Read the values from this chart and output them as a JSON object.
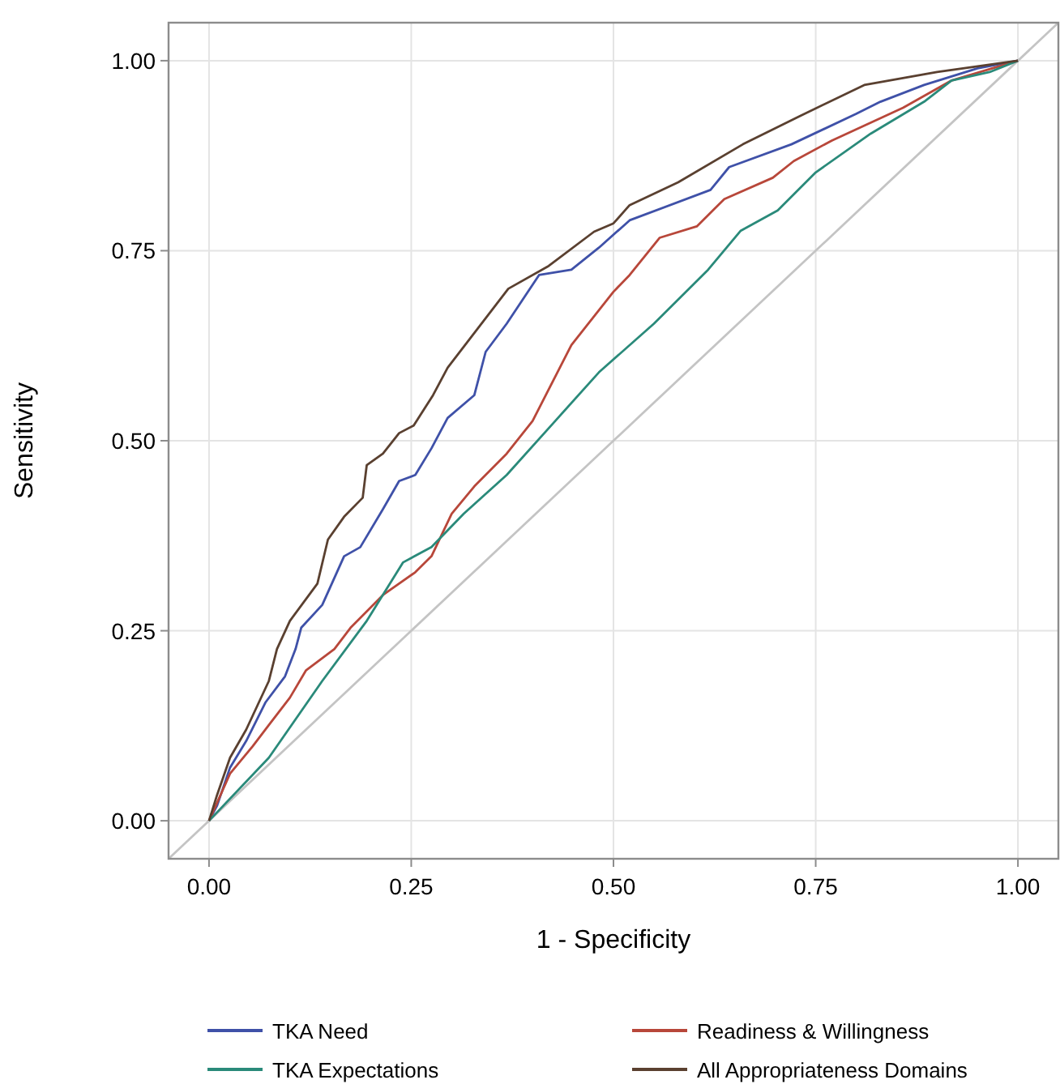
{
  "chart_data": {
    "type": "line",
    "xlabel": "1 - Specificity",
    "ylabel": "Sensitivity",
    "xlim": [
      -0.05,
      1.05
    ],
    "ylim": [
      -0.05,
      1.05
    ],
    "xticks": [
      {
        "value": 0,
        "label": "0.00"
      },
      {
        "value": 0.25,
        "label": "0.25"
      },
      {
        "value": 0.5,
        "label": "0.50"
      },
      {
        "value": 0.75,
        "label": "0.75"
      },
      {
        "value": 1,
        "label": "1.00"
      }
    ],
    "yticks": [
      {
        "value": 0,
        "label": "0.00"
      },
      {
        "value": 0.25,
        "label": "0.25"
      },
      {
        "value": 0.5,
        "label": "0.50"
      },
      {
        "value": 0.75,
        "label": "0.75"
      },
      {
        "value": 1,
        "label": "1.00"
      }
    ],
    "grid": true,
    "legend": "bottom",
    "marker": "none",
    "line_style": "solid",
    "series": [
      {
        "type": "line",
        "color": "#c4c4c4",
        "x": [
          -0.05,
          1.05
        ],
        "values": [
          -0.05,
          1.05
        ]
      },
      {
        "name": "TKA Need",
        "color": "#3f51a8",
        "x": [
          0,
          0.01,
          0.026,
          0.046,
          0.07,
          0.094,
          0.107,
          0.114,
          0.14,
          0.167,
          0.187,
          0.215,
          0.235,
          0.255,
          0.275,
          0.295,
          0.328,
          0.342,
          0.368,
          0.408,
          0.448,
          0.482,
          0.52,
          0.62,
          0.643,
          0.72,
          0.8,
          0.83,
          0.884,
          0.95,
          1
        ],
        "values": [
          0,
          0.02,
          0.07,
          0.105,
          0.156,
          0.19,
          0.226,
          0.254,
          0.284,
          0.348,
          0.36,
          0.41,
          0.447,
          0.455,
          0.49,
          0.53,
          0.56,
          0.617,
          0.654,
          0.718,
          0.725,
          0.754,
          0.79,
          0.83,
          0.86,
          0.89,
          0.93,
          0.946,
          0.968,
          0.99,
          1
        ]
      },
      {
        "name": "Readiness & Willingness",
        "color": "#b8473a",
        "x": [
          0,
          0.026,
          0.054,
          0.074,
          0.1,
          0.12,
          0.155,
          0.175,
          0.215,
          0.255,
          0.275,
          0.3,
          0.328,
          0.368,
          0.4,
          0.448,
          0.5,
          0.52,
          0.557,
          0.603,
          0.637,
          0.697,
          0.723,
          0.77,
          0.858,
          0.918,
          1
        ],
        "values": [
          0,
          0.062,
          0.098,
          0.126,
          0.162,
          0.198,
          0.226,
          0.254,
          0.297,
          0.327,
          0.348,
          0.404,
          0.44,
          0.483,
          0.526,
          0.626,
          0.696,
          0.718,
          0.767,
          0.782,
          0.818,
          0.846,
          0.868,
          0.895,
          0.938,
          0.974,
          1
        ]
      },
      {
        "name": "TKA Expectations",
        "color": "#2a8a7a",
        "x": [
          0,
          0.074,
          0.14,
          0.195,
          0.24,
          0.275,
          0.315,
          0.368,
          0.428,
          0.482,
          0.55,
          0.617,
          0.657,
          0.703,
          0.75,
          0.818,
          0.884,
          0.918,
          0.965,
          1
        ],
        "values": [
          0,
          0.083,
          0.184,
          0.263,
          0.34,
          0.36,
          0.404,
          0.455,
          0.526,
          0.59,
          0.654,
          0.725,
          0.776,
          0.803,
          0.853,
          0.904,
          0.946,
          0.974,
          0.985,
          1
        ]
      },
      {
        "name": "All Appropriateness Domains",
        "color": "#5a4030",
        "x": [
          0,
          0.01,
          0.026,
          0.046,
          0.074,
          0.084,
          0.1,
          0.134,
          0.147,
          0.167,
          0.19,
          0.195,
          0.215,
          0.235,
          0.253,
          0.277,
          0.295,
          0.37,
          0.42,
          0.476,
          0.5,
          0.52,
          0.58,
          0.66,
          0.73,
          0.81,
          0.9,
          1
        ],
        "values": [
          0,
          0.034,
          0.083,
          0.12,
          0.184,
          0.226,
          0.263,
          0.312,
          0.37,
          0.4,
          0.425,
          0.468,
          0.483,
          0.51,
          0.52,
          0.56,
          0.596,
          0.7,
          0.73,
          0.775,
          0.786,
          0.81,
          0.84,
          0.89,
          0.927,
          0.968,
          0.985,
          1
        ]
      }
    ]
  }
}
